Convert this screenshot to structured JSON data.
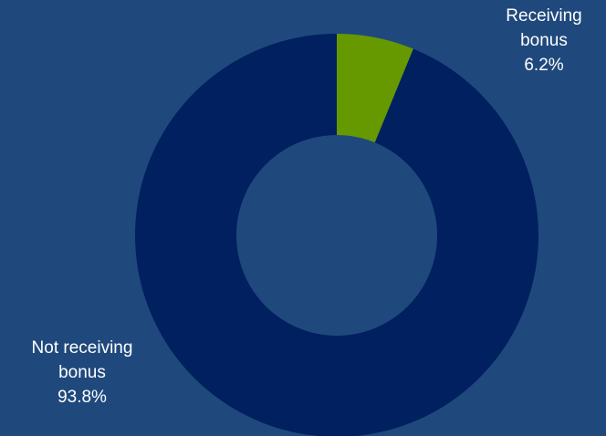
{
  "chart_data": {
    "type": "pie",
    "style": "donut",
    "slices": [
      {
        "label_lines": [
          "Receiving",
          "bonus"
        ],
        "value": 6.2,
        "value_label": "6.2%",
        "color": "#669900"
      },
      {
        "label_lines": [
          "Not receiving",
          "bonus"
        ],
        "value": 93.8,
        "value_label": "93.8%",
        "color": "#002060"
      }
    ],
    "background_color": "#1f497d",
    "legend": "none"
  }
}
